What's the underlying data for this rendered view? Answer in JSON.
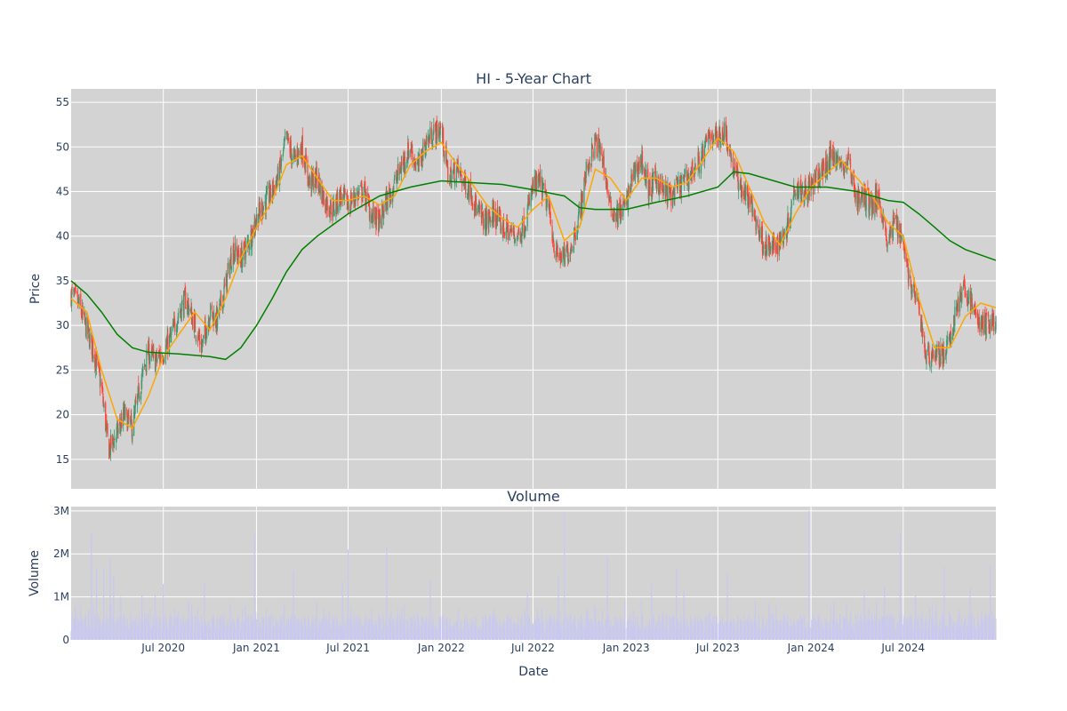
{
  "colors": {
    "plot_bg": "#d3d3d3",
    "grid": "#ffffff",
    "up": "#3d9970",
    "down": "#ff4136",
    "ma_short": "#ffa500",
    "ma_long": "#008000",
    "volume": "#c8c8f0"
  },
  "chart_data": [
    {
      "type": "candlestick",
      "title": "HI - 5-Year Chart",
      "ylabel": "Price",
      "ylim": [
        11.7,
        56.5
      ],
      "yticks": [
        15,
        20,
        25,
        30,
        35,
        40,
        45,
        50,
        55
      ],
      "ytick_labels": [
        "15",
        "20",
        "25",
        "30",
        "35",
        "40",
        "45",
        "50",
        "55"
      ],
      "x_range": [
        "2020-01-01",
        "2024-12-31"
      ],
      "grid": true,
      "close_path": [
        [
          "2020-01-01",
          33.5
        ],
        [
          "2020-01-15",
          32.5
        ],
        [
          "2020-02-01",
          29.5
        ],
        [
          "2020-02-15",
          27.0
        ],
        [
          "2020-03-01",
          23.0
        ],
        [
          "2020-03-15",
          16.0
        ],
        [
          "2020-04-01",
          18.0
        ],
        [
          "2020-04-15",
          20.0
        ],
        [
          "2020-05-01",
          18.5
        ],
        [
          "2020-05-15",
          23.0
        ],
        [
          "2020-06-01",
          27.0
        ],
        [
          "2020-06-15",
          26.0
        ],
        [
          "2020-07-01",
          27.0
        ],
        [
          "2020-07-15",
          28.5
        ],
        [
          "2020-08-01",
          31.5
        ],
        [
          "2020-08-15",
          33.0
        ],
        [
          "2020-09-01",
          30.0
        ],
        [
          "2020-09-15",
          27.5
        ],
        [
          "2020-10-01",
          31.5
        ],
        [
          "2020-10-15",
          30.5
        ],
        [
          "2020-11-01",
          34.5
        ],
        [
          "2020-11-15",
          38.5
        ],
        [
          "2020-12-01",
          37.5
        ],
        [
          "2020-12-15",
          39.0
        ],
        [
          "2021-01-01",
          42.0
        ],
        [
          "2021-01-15",
          43.5
        ],
        [
          "2021-02-01",
          45.0
        ],
        [
          "2021-02-15",
          47.0
        ],
        [
          "2021-03-01",
          51.0
        ],
        [
          "2021-03-15",
          48.5
        ],
        [
          "2021-04-01",
          50.0
        ],
        [
          "2021-04-15",
          46.0
        ],
        [
          "2021-05-01",
          46.5
        ],
        [
          "2021-05-15",
          44.0
        ],
        [
          "2021-06-01",
          43.0
        ],
        [
          "2021-06-15",
          44.5
        ],
        [
          "2021-07-01",
          43.5
        ],
        [
          "2021-07-15",
          44.5
        ],
        [
          "2021-08-01",
          45.0
        ],
        [
          "2021-08-15",
          42.5
        ],
        [
          "2021-09-01",
          41.5
        ],
        [
          "2021-09-15",
          44.0
        ],
        [
          "2021-10-01",
          46.0
        ],
        [
          "2021-10-15",
          48.0
        ],
        [
          "2021-11-01",
          50.0
        ],
        [
          "2021-11-15",
          47.5
        ],
        [
          "2021-12-01",
          50.5
        ],
        [
          "2021-12-15",
          51.5
        ],
        [
          "2022-01-01",
          52.0
        ],
        [
          "2022-01-15",
          46.5
        ],
        [
          "2022-02-01",
          47.5
        ],
        [
          "2022-02-15",
          46.0
        ],
        [
          "2022-03-01",
          45.0
        ],
        [
          "2022-03-15",
          42.5
        ],
        [
          "2022-04-01",
          41.5
        ],
        [
          "2022-04-15",
          42.5
        ],
        [
          "2022-05-01",
          41.0
        ],
        [
          "2022-05-15",
          40.5
        ],
        [
          "2022-06-01",
          40.0
        ],
        [
          "2022-06-15",
          41.5
        ],
        [
          "2022-07-01",
          45.5
        ],
        [
          "2022-07-15",
          46.0
        ],
        [
          "2022-08-01",
          43.0
        ],
        [
          "2022-08-15",
          38.0
        ],
        [
          "2022-09-01",
          37.5
        ],
        [
          "2022-09-15",
          39.0
        ],
        [
          "2022-10-01",
          42.5
        ],
        [
          "2022-10-15",
          47.5
        ],
        [
          "2022-11-01",
          50.5
        ],
        [
          "2022-11-15",
          49.0
        ],
        [
          "2022-12-01",
          43.0
        ],
        [
          "2022-12-15",
          42.5
        ],
        [
          "2023-01-01",
          43.5
        ],
        [
          "2023-01-15",
          47.0
        ],
        [
          "2023-02-01",
          48.5
        ],
        [
          "2023-02-15",
          45.0
        ],
        [
          "2023-03-01",
          46.5
        ],
        [
          "2023-03-15",
          45.0
        ],
        [
          "2023-04-01",
          44.5
        ],
        [
          "2023-04-15",
          45.5
        ],
        [
          "2023-05-01",
          46.5
        ],
        [
          "2023-05-15",
          47.5
        ],
        [
          "2023-06-01",
          49.0
        ],
        [
          "2023-06-15",
          51.5
        ],
        [
          "2023-07-01",
          51.0
        ],
        [
          "2023-07-15",
          52.0
        ],
        [
          "2023-08-01",
          47.5
        ],
        [
          "2023-08-15",
          45.5
        ],
        [
          "2023-09-01",
          44.0
        ],
        [
          "2023-09-15",
          41.5
        ],
        [
          "2023-10-01",
          39.0
        ],
        [
          "2023-10-15",
          38.5
        ],
        [
          "2023-11-01",
          39.5
        ],
        [
          "2023-11-15",
          41.0
        ],
        [
          "2023-12-01",
          46.0
        ],
        [
          "2023-12-15",
          45.0
        ],
        [
          "2024-01-01",
          45.5
        ],
        [
          "2024-01-15",
          46.5
        ],
        [
          "2024-02-01",
          48.0
        ],
        [
          "2024-02-15",
          49.5
        ],
        [
          "2024-03-01",
          47.5
        ],
        [
          "2024-03-15",
          48.5
        ],
        [
          "2024-04-01",
          44.0
        ],
        [
          "2024-04-15",
          44.5
        ],
        [
          "2024-05-01",
          43.5
        ],
        [
          "2024-05-15",
          44.5
        ],
        [
          "2024-06-01",
          39.0
        ],
        [
          "2024-06-15",
          42.0
        ],
        [
          "2024-07-01",
          39.5
        ],
        [
          "2024-07-15",
          34.5
        ],
        [
          "2024-08-01",
          32.0
        ],
        [
          "2024-08-15",
          26.5
        ],
        [
          "2024-09-01",
          27.0
        ],
        [
          "2024-09-15",
          26.5
        ],
        [
          "2024-10-01",
          28.0
        ],
        [
          "2024-10-15",
          32.5
        ],
        [
          "2024-11-01",
          34.0
        ],
        [
          "2024-11-15",
          32.0
        ],
        [
          "2024-12-01",
          30.0
        ],
        [
          "2024-12-31",
          30.5
        ]
      ],
      "ma_short": [
        [
          "2020-01-01",
          33.0
        ],
        [
          "2020-02-01",
          31.5
        ],
        [
          "2020-03-01",
          25.0
        ],
        [
          "2020-04-01",
          19.5
        ],
        [
          "2020-05-01",
          18.5
        ],
        [
          "2020-06-01",
          22.0
        ],
        [
          "2020-07-01",
          26.5
        ],
        [
          "2020-08-01",
          29.0
        ],
        [
          "2020-09-01",
          31.5
        ],
        [
          "2020-10-01",
          29.5
        ],
        [
          "2020-11-01",
          33.0
        ],
        [
          "2020-12-01",
          37.5
        ],
        [
          "2021-01-01",
          41.0
        ],
        [
          "2021-02-01",
          44.0
        ],
        [
          "2021-03-01",
          48.0
        ],
        [
          "2021-04-01",
          49.0
        ],
        [
          "2021-05-01",
          46.5
        ],
        [
          "2021-06-01",
          44.0
        ],
        [
          "2021-07-01",
          44.0
        ],
        [
          "2021-08-01",
          44.5
        ],
        [
          "2021-09-01",
          43.5
        ],
        [
          "2021-10-01",
          44.5
        ],
        [
          "2021-11-01",
          48.0
        ],
        [
          "2021-12-01",
          49.5
        ],
        [
          "2022-01-01",
          50.5
        ],
        [
          "2022-02-01",
          48.0
        ],
        [
          "2022-03-01",
          46.0
        ],
        [
          "2022-04-01",
          43.5
        ],
        [
          "2022-05-01",
          42.0
        ],
        [
          "2022-06-01",
          41.0
        ],
        [
          "2022-07-01",
          43.0
        ],
        [
          "2022-08-01",
          44.5
        ],
        [
          "2022-09-01",
          39.5
        ],
        [
          "2022-10-01",
          41.0
        ],
        [
          "2022-11-01",
          47.5
        ],
        [
          "2022-12-01",
          46.5
        ],
        [
          "2023-01-01",
          44.0
        ],
        [
          "2023-02-01",
          46.5
        ],
        [
          "2023-03-01",
          46.5
        ],
        [
          "2023-04-01",
          45.5
        ],
        [
          "2023-05-01",
          46.0
        ],
        [
          "2023-06-01",
          48.5
        ],
        [
          "2023-07-01",
          51.0
        ],
        [
          "2023-08-01",
          49.5
        ],
        [
          "2023-09-01",
          45.5
        ],
        [
          "2023-10-01",
          41.5
        ],
        [
          "2023-11-01",
          39.0
        ],
        [
          "2023-12-01",
          42.5
        ],
        [
          "2024-01-01",
          45.5
        ],
        [
          "2024-02-01",
          47.0
        ],
        [
          "2024-03-01",
          48.5
        ],
        [
          "2024-04-01",
          46.5
        ],
        [
          "2024-05-01",
          44.5
        ],
        [
          "2024-06-01",
          41.5
        ],
        [
          "2024-07-01",
          40.0
        ],
        [
          "2024-08-01",
          33.0
        ],
        [
          "2024-09-01",
          27.5
        ],
        [
          "2024-10-01",
          27.5
        ],
        [
          "2024-11-01",
          31.0
        ],
        [
          "2024-12-01",
          32.5
        ],
        [
          "2024-12-31",
          32.0
        ]
      ],
      "ma_long": [
        [
          "2020-01-01",
          35.0
        ],
        [
          "2020-02-01",
          33.5
        ],
        [
          "2020-03-01",
          31.5
        ],
        [
          "2020-04-01",
          29.0
        ],
        [
          "2020-05-01",
          27.5
        ],
        [
          "2020-06-01",
          27.0
        ],
        [
          "2020-08-01",
          26.8
        ],
        [
          "2020-10-01",
          26.5
        ],
        [
          "2020-11-01",
          26.2
        ],
        [
          "2020-12-01",
          27.5
        ],
        [
          "2021-01-01",
          30.0
        ],
        [
          "2021-02-01",
          33.0
        ],
        [
          "2021-03-01",
          36.0
        ],
        [
          "2021-04-01",
          38.5
        ],
        [
          "2021-05-01",
          40.0
        ],
        [
          "2021-07-01",
          42.5
        ],
        [
          "2021-09-01",
          44.5
        ],
        [
          "2021-11-01",
          45.5
        ],
        [
          "2022-01-01",
          46.2
        ],
        [
          "2022-03-01",
          46.0
        ],
        [
          "2022-05-01",
          45.8
        ],
        [
          "2022-07-01",
          45.2
        ],
        [
          "2022-09-01",
          44.5
        ],
        [
          "2022-10-01",
          43.2
        ],
        [
          "2022-11-01",
          43.0
        ],
        [
          "2023-01-01",
          43.0
        ],
        [
          "2023-03-01",
          43.8
        ],
        [
          "2023-05-01",
          44.5
        ],
        [
          "2023-07-01",
          45.5
        ],
        [
          "2023-08-01",
          47.2
        ],
        [
          "2023-09-01",
          47.0
        ],
        [
          "2023-11-01",
          46.0
        ],
        [
          "2023-12-01",
          45.5
        ],
        [
          "2024-02-01",
          45.5
        ],
        [
          "2024-04-01",
          45.0
        ],
        [
          "2024-06-01",
          44.0
        ],
        [
          "2024-07-01",
          43.8
        ],
        [
          "2024-08-01",
          42.5
        ],
        [
          "2024-09-01",
          41.0
        ],
        [
          "2024-10-01",
          39.5
        ],
        [
          "2024-11-01",
          38.5
        ],
        [
          "2024-12-31",
          37.3
        ]
      ]
    },
    {
      "type": "bar",
      "title": "Volume",
      "ylabel": "Volume",
      "xlabel": "Date",
      "ylim": [
        0,
        3100000
      ],
      "yticks": [
        0,
        1000000,
        2000000,
        3000000
      ],
      "ytick_labels": [
        "0",
        "1M",
        "2M",
        "3M"
      ],
      "x_range": [
        "2020-01-01",
        "2024-12-31"
      ],
      "xticks": [
        "2020-07-01",
        "2021-01-01",
        "2021-07-01",
        "2022-01-01",
        "2022-07-01",
        "2023-01-01",
        "2023-07-01",
        "2024-01-01",
        "2024-07-01"
      ],
      "xtick_labels": [
        "Jul 2020",
        "Jan 2021",
        "Jul 2021",
        "Jan 2022",
        "Jul 2022",
        "Jan 2023",
        "Jul 2023",
        "Jan 2024",
        "Jul 2024"
      ],
      "typical_volume": 420000,
      "spikes": [
        [
          "2020-02-10",
          2500000
        ],
        [
          "2020-02-20",
          1650000
        ],
        [
          "2020-03-05",
          1650000
        ],
        [
          "2020-03-18",
          1900000
        ],
        [
          "2020-03-25",
          1500000
        ],
        [
          "2020-04-08",
          1000000
        ],
        [
          "2020-05-20",
          1050000
        ],
        [
          "2020-06-15",
          1050000
        ],
        [
          "2020-07-01",
          1300000
        ],
        [
          "2020-08-20",
          900000
        ],
        [
          "2020-09-20",
          1350000
        ],
        [
          "2020-11-10",
          850000
        ],
        [
          "2020-12-10",
          800000
        ],
        [
          "2020-12-28",
          2450000
        ],
        [
          "2021-01-20",
          700000
        ],
        [
          "2021-02-25",
          850000
        ],
        [
          "2021-03-15",
          1600000
        ],
        [
          "2021-06-20",
          1350000
        ],
        [
          "2021-07-01",
          2100000
        ],
        [
          "2021-09-15",
          2150000
        ],
        [
          "2021-11-15",
          600000
        ],
        [
          "2021-12-10",
          1400000
        ],
        [
          "2022-04-15",
          700000
        ],
        [
          "2022-06-15",
          700000
        ],
        [
          "2022-06-20",
          1100000
        ],
        [
          "2022-07-10",
          700000
        ],
        [
          "2022-08-20",
          1500000
        ],
        [
          "2022-09-01",
          2950000
        ],
        [
          "2022-10-15",
          700000
        ],
        [
          "2022-11-01",
          750000
        ],
        [
          "2022-11-25",
          1950000
        ],
        [
          "2023-01-15",
          700000
        ],
        [
          "2023-02-20",
          1300000
        ],
        [
          "2023-03-15",
          650000
        ],
        [
          "2023-04-10",
          1650000
        ],
        [
          "2023-04-25",
          1150000
        ],
        [
          "2023-06-15",
          650000
        ],
        [
          "2023-07-20",
          1550000
        ],
        [
          "2023-10-10",
          850000
        ],
        [
          "2023-12-28",
          3000000
        ],
        [
          "2024-02-15",
          900000
        ],
        [
          "2024-04-15",
          1150000
        ],
        [
          "2024-05-25",
          1250000
        ],
        [
          "2024-06-25",
          2500000
        ],
        [
          "2024-07-25",
          1050000
        ],
        [
          "2024-09-20",
          1700000
        ],
        [
          "2024-10-20",
          700000
        ],
        [
          "2024-11-10",
          1200000
        ],
        [
          "2024-12-20",
          1750000
        ]
      ]
    }
  ]
}
